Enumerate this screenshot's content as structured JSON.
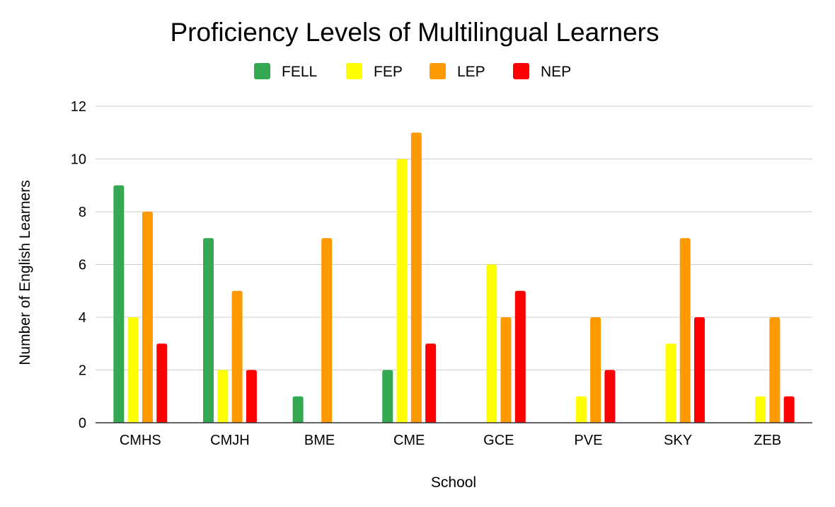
{
  "chart_data": {
    "type": "bar",
    "title": "Proficiency Levels of Multilingual Learners",
    "xlabel": "School",
    "ylabel": "Number of English Learners",
    "ylim": [
      0,
      12
    ],
    "yticks": [
      0,
      2,
      4,
      6,
      8,
      10,
      12
    ],
    "grid": true,
    "legend_position": "top",
    "categories": [
      "CMHS",
      "CMJH",
      "BME",
      "CME",
      "GCE",
      "PVE",
      "SKY",
      "ZEB"
    ],
    "series": [
      {
        "name": "FELL",
        "color": "#34a853",
        "values": [
          9,
          7,
          1,
          2,
          0,
          0,
          0,
          0
        ]
      },
      {
        "name": "FEP",
        "color": "#ffff00",
        "values": [
          4,
          2,
          0,
          10,
          6,
          1,
          3,
          1
        ]
      },
      {
        "name": "LEP",
        "color": "#ff9900",
        "values": [
          8,
          5,
          7,
          11,
          4,
          4,
          7,
          4
        ]
      },
      {
        "name": "NEP",
        "color": "#ff0000",
        "values": [
          3,
          2,
          0,
          3,
          5,
          2,
          4,
          1
        ]
      }
    ]
  }
}
